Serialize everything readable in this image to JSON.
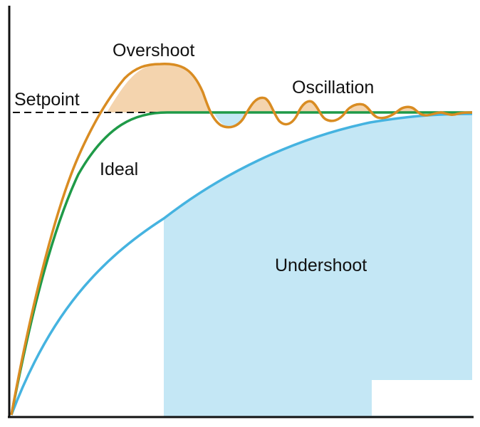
{
  "labels": {
    "setpoint": "Setpoint",
    "overshoot": "Overshoot",
    "oscillation": "Oscillation",
    "ideal": "Ideal",
    "undershoot": "Undershoot"
  },
  "colors": {
    "axis": "#111111",
    "setpoint_line": "#111111",
    "response_curve": "#d98c22",
    "overshoot_fill": "#f4d4ae",
    "ideal_curve": "#1f9a48",
    "undershoot_curve": "#45b3e0",
    "undershoot_fill": "#c4e7f5",
    "text": "#111111"
  }
}
